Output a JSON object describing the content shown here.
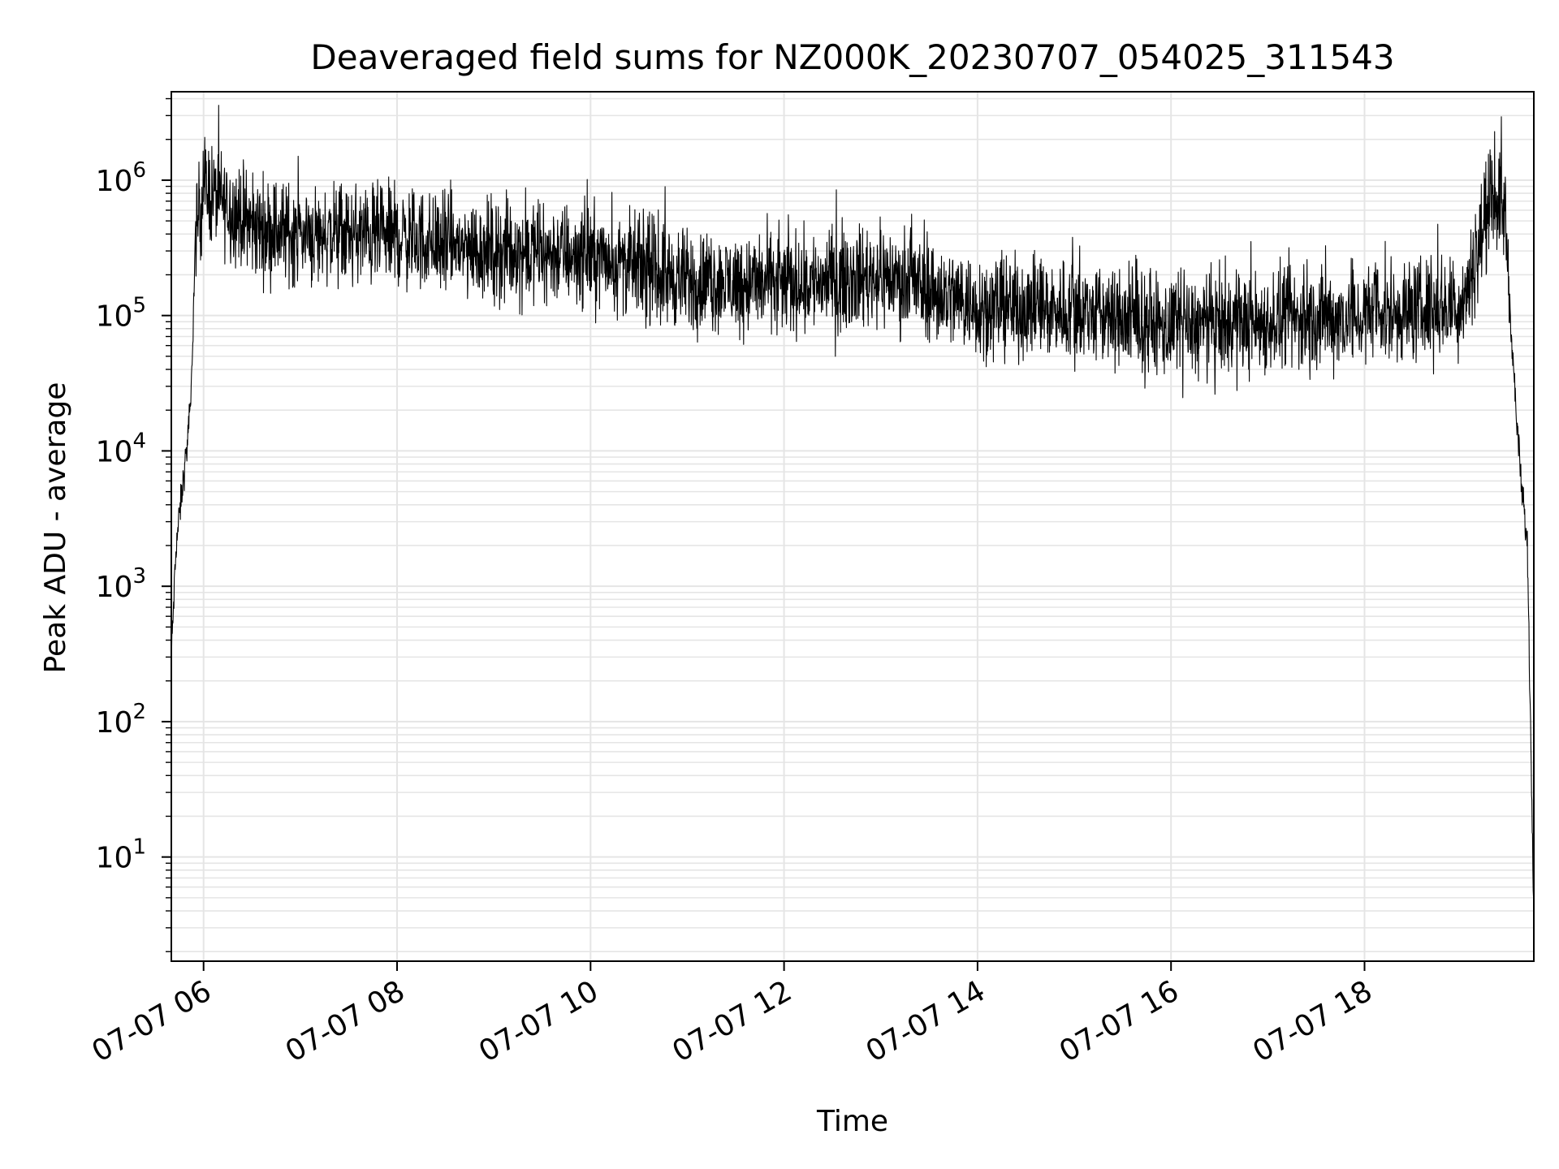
{
  "chart_data": {
    "type": "line",
    "title": "Deaveraged field sums for NZ000K_20230707_054025_311543",
    "xlabel": "Time",
    "ylabel": "Peak ADU - average",
    "yscale": "log",
    "ylim": [
      1.7,
      4500000
    ],
    "xlim": [
      "07-07 05:40",
      "07-07 19:45"
    ],
    "grid": true,
    "x_ticks": [
      {
        "value": "07-07 06:00",
        "label": "07-07 06"
      },
      {
        "value": "07-07 08:00",
        "label": "07-07 08"
      },
      {
        "value": "07-07 10:00",
        "label": "07-07 10"
      },
      {
        "value": "07-07 12:00",
        "label": "07-07 12"
      },
      {
        "value": "07-07 14:00",
        "label": "07-07 14"
      },
      {
        "value": "07-07 16:00",
        "label": "07-07 16"
      },
      {
        "value": "07-07 18:00",
        "label": "07-07 18"
      }
    ],
    "y_ticks": [
      {
        "value": 10,
        "base": "10",
        "exp": "1"
      },
      {
        "value": 100,
        "base": "10",
        "exp": "2"
      },
      {
        "value": 1000,
        "base": "10",
        "exp": "3"
      },
      {
        "value": 10000,
        "base": "10",
        "exp": "4"
      },
      {
        "value": 100000,
        "base": "10",
        "exp": "5"
      },
      {
        "value": 1000000,
        "base": "10",
        "exp": "6"
      }
    ],
    "line_color": "#000000",
    "grid_color": "#e5e5e5",
    "series_profile": {
      "description": "Noisy deaveraged sum trace",
      "points": [
        {
          "x": "07-07 05:40",
          "y": 300
        },
        {
          "x": "07-07 05:43",
          "y": 2000
        },
        {
          "x": "07-07 05:48",
          "y": 7000
        },
        {
          "x": "07-07 05:52",
          "y": 20000
        },
        {
          "x": "07-07 05:55",
          "y": 400000
        },
        {
          "x": "07-07 06:00",
          "y": 900000
        },
        {
          "x": "07-07 06:30",
          "y": 450000
        },
        {
          "x": "07-07 07:00",
          "y": 400000
        },
        {
          "x": "07-07 08:00",
          "y": 380000
        },
        {
          "x": "07-07 09:00",
          "y": 300000
        },
        {
          "x": "07-07 10:00",
          "y": 280000
        },
        {
          "x": "07-07 11:00",
          "y": 180000
        },
        {
          "x": "07-07 12:00",
          "y": 170000
        },
        {
          "x": "07-07 13:00",
          "y": 200000
        },
        {
          "x": "07-07 14:00",
          "y": 120000
        },
        {
          "x": "07-07 15:00",
          "y": 110000
        },
        {
          "x": "07-07 16:00",
          "y": 80000
        },
        {
          "x": "07-07 17:00",
          "y": 90000
        },
        {
          "x": "07-07 18:00",
          "y": 100000
        },
        {
          "x": "07-07 19:00",
          "y": 120000
        },
        {
          "x": "07-07 19:10",
          "y": 300000
        },
        {
          "x": "07-07 19:20",
          "y": 800000
        },
        {
          "x": "07-07 19:27",
          "y": 600000
        },
        {
          "x": "07-07 19:33",
          "y": 30000
        },
        {
          "x": "07-07 19:37",
          "y": 6000
        },
        {
          "x": "07-07 19:41",
          "y": 2000
        },
        {
          "x": "07-07 19:45",
          "y": 4
        }
      ],
      "noise_decades": 0.55
    }
  }
}
